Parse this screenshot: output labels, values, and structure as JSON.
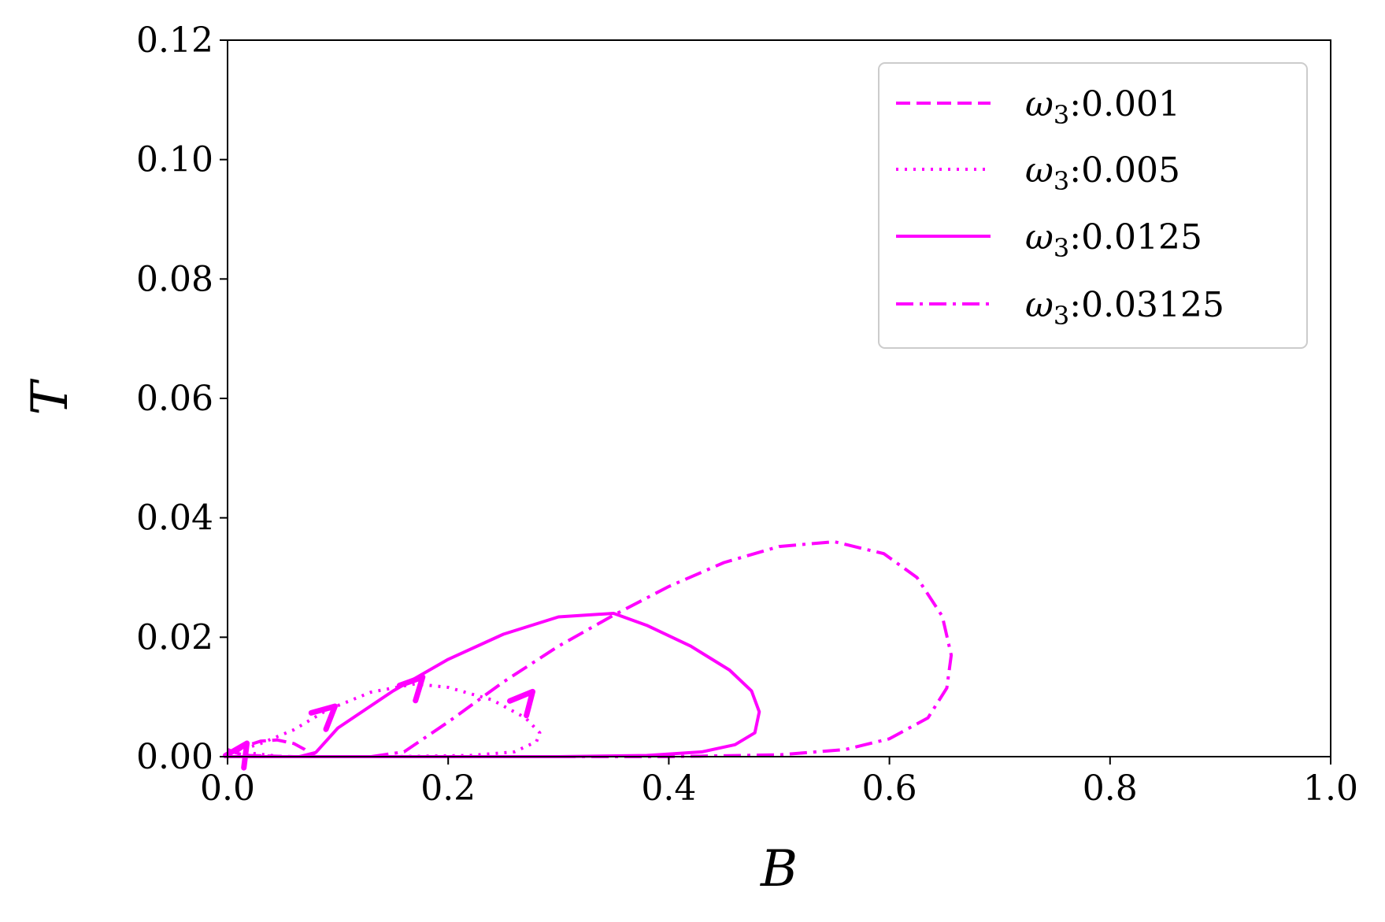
{
  "chart_data": {
    "type": "line",
    "xlabel": "B",
    "ylabel": "T",
    "xlim": [
      0.0,
      1.0
    ],
    "ylim": [
      0.0,
      0.12
    ],
    "xticks": [
      "0.0",
      "0.2",
      "0.4",
      "0.6",
      "0.8",
      "1.0"
    ],
    "yticks": [
      "0.00",
      "0.02",
      "0.04",
      "0.06",
      "0.08",
      "0.10",
      "0.12"
    ],
    "grid": false,
    "legend_position": "top-right",
    "line_color": "#ff00ff",
    "series": [
      {
        "name": "0.001",
        "style": "dashed",
        "points": [
          [
            0.0,
            0.0012
          ],
          [
            0.005,
            0.0008
          ],
          [
            0.012,
            0.0004
          ],
          [
            0.02,
            0.0002
          ],
          [
            0.04,
            0.0001
          ],
          [
            0.06,
            0.0
          ],
          [
            0.08,
            0.0
          ]
        ],
        "points_return": [
          [
            0.08,
            0.0
          ],
          [
            0.075,
            0.0004
          ],
          [
            0.07,
            0.0012
          ],
          [
            0.06,
            0.0022
          ],
          [
            0.045,
            0.0028
          ],
          [
            0.03,
            0.0026
          ],
          [
            0.015,
            0.0017
          ],
          [
            0.005,
            0.0004
          ],
          [
            0.0,
            0.0
          ]
        ]
      },
      {
        "name": "0.005",
        "style": "dotted",
        "points": [
          [
            0.0,
            0.001
          ],
          [
            0.05,
            0.0
          ],
          [
            0.15,
            0.0
          ],
          [
            0.22,
            0.0002
          ],
          [
            0.26,
            0.0008
          ],
          [
            0.28,
            0.0025
          ],
          [
            0.283,
            0.004
          ],
          [
            0.27,
            0.0065
          ],
          [
            0.24,
            0.0095
          ],
          [
            0.2,
            0.0116
          ],
          [
            0.17,
            0.0122
          ],
          [
            0.13,
            0.0108
          ],
          [
            0.09,
            0.0078
          ],
          [
            0.06,
            0.0045
          ],
          [
            0.03,
            0.0022
          ],
          [
            0.01,
            0.001
          ],
          [
            0.0,
            0.001
          ]
        ]
      },
      {
        "name": "0.0125",
        "style": "solid",
        "points": [
          [
            0.0,
            0.0
          ],
          [
            0.2,
            0.0
          ],
          [
            0.3,
            0.0
          ],
          [
            0.38,
            0.0002
          ],
          [
            0.43,
            0.0008
          ],
          [
            0.46,
            0.002
          ],
          [
            0.478,
            0.004
          ],
          [
            0.482,
            0.0075
          ],
          [
            0.475,
            0.011
          ],
          [
            0.455,
            0.0145
          ],
          [
            0.42,
            0.0185
          ],
          [
            0.38,
            0.022
          ],
          [
            0.35,
            0.024
          ],
          [
            0.3,
            0.0234
          ],
          [
            0.25,
            0.0205
          ],
          [
            0.2,
            0.0163
          ],
          [
            0.15,
            0.011
          ],
          [
            0.1,
            0.0048
          ],
          [
            0.08,
            0.0007
          ],
          [
            0.065,
            0.0
          ]
        ]
      },
      {
        "name": "0.03125",
        "style": "dashdot",
        "points": [
          [
            0.0,
            0.0
          ],
          [
            0.2,
            0.0
          ],
          [
            0.4,
            0.0
          ],
          [
            0.5,
            0.0003
          ],
          [
            0.56,
            0.0012
          ],
          [
            0.6,
            0.003
          ],
          [
            0.635,
            0.0065
          ],
          [
            0.652,
            0.0115
          ],
          [
            0.656,
            0.017
          ],
          [
            0.648,
            0.0235
          ],
          [
            0.625,
            0.03
          ],
          [
            0.595,
            0.034
          ],
          [
            0.55,
            0.036
          ],
          [
            0.5,
            0.0352
          ],
          [
            0.45,
            0.0325
          ],
          [
            0.4,
            0.0285
          ],
          [
            0.35,
            0.0237
          ],
          [
            0.3,
            0.0185
          ],
          [
            0.25,
            0.0125
          ],
          [
            0.2,
            0.0058
          ],
          [
            0.16,
            0.0008
          ],
          [
            0.13,
            0.0
          ]
        ]
      }
    ],
    "arrows": [
      {
        "series": "0.001",
        "at": [
          0.012,
          0.0007
        ],
        "direction": [
          1,
          1.5
        ]
      },
      {
        "series": "0.005",
        "at": [
          0.09,
          0.0072
        ],
        "direction": [
          1,
          0.9
        ]
      },
      {
        "series": "0.0125",
        "at": [
          0.17,
          0.012
        ],
        "direction": [
          1,
          1.05
        ]
      },
      {
        "series": "0.03125",
        "at": [
          0.27,
          0.0095
        ],
        "direction": [
          1,
          1.15
        ]
      }
    ],
    "legend": [
      {
        "symbol": "ω",
        "subscript": "3",
        "value": ":0.001"
      },
      {
        "symbol": "ω",
        "subscript": "3",
        "value": ":0.005"
      },
      {
        "symbol": "ω",
        "subscript": "3",
        "value": ":0.0125"
      },
      {
        "symbol": "ω",
        "subscript": "3",
        "value": ":0.03125"
      }
    ]
  }
}
